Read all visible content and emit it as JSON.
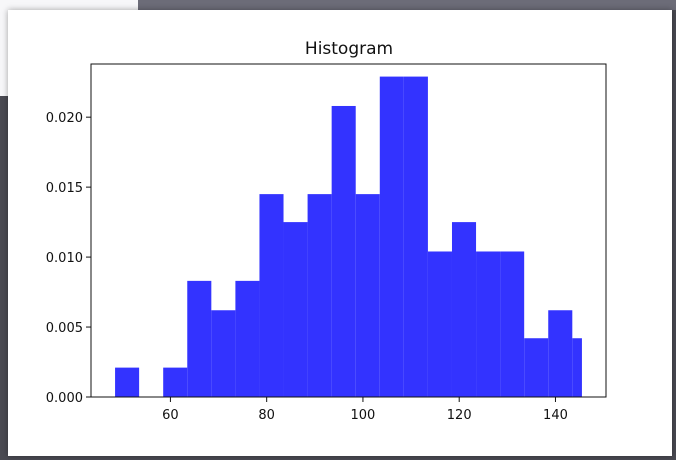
{
  "chart_data": {
    "type": "bar",
    "title": "Histogram",
    "xlabel": "",
    "ylabel": "",
    "bar_color": "#3333ff",
    "xlim": [
      43.5,
      150.5
    ],
    "ylim": [
      0,
      0.0238
    ],
    "x_ticks": [
      60,
      80,
      100,
      120,
      140
    ],
    "x_tick_labels": [
      "60",
      "80",
      "100",
      "120",
      "140"
    ],
    "y_ticks": [
      0.0,
      0.005,
      0.01,
      0.015,
      0.02
    ],
    "y_tick_labels": [
      "0.000",
      "0.005",
      "0.010",
      "0.015",
      "0.020"
    ],
    "bin_edges": [
      48.5,
      53.5,
      58.5,
      63.5,
      68.5,
      73.5,
      78.5,
      83.5,
      88.5,
      93.5,
      98.5,
      103.5,
      108.5,
      113.5,
      118.5,
      123.5,
      128.5,
      133.5,
      138.5,
      143.5,
      145.5
    ],
    "values": [
      0.0021,
      0.0,
      0.0021,
      0.0083,
      0.0062,
      0.0083,
      0.0145,
      0.0125,
      0.0145,
      0.0208,
      0.0145,
      0.0229,
      0.0229,
      0.0104,
      0.0125,
      0.0104,
      0.0104,
      0.0042,
      0.0062,
      0.0042
    ],
    "grid": false,
    "legend": "none"
  }
}
